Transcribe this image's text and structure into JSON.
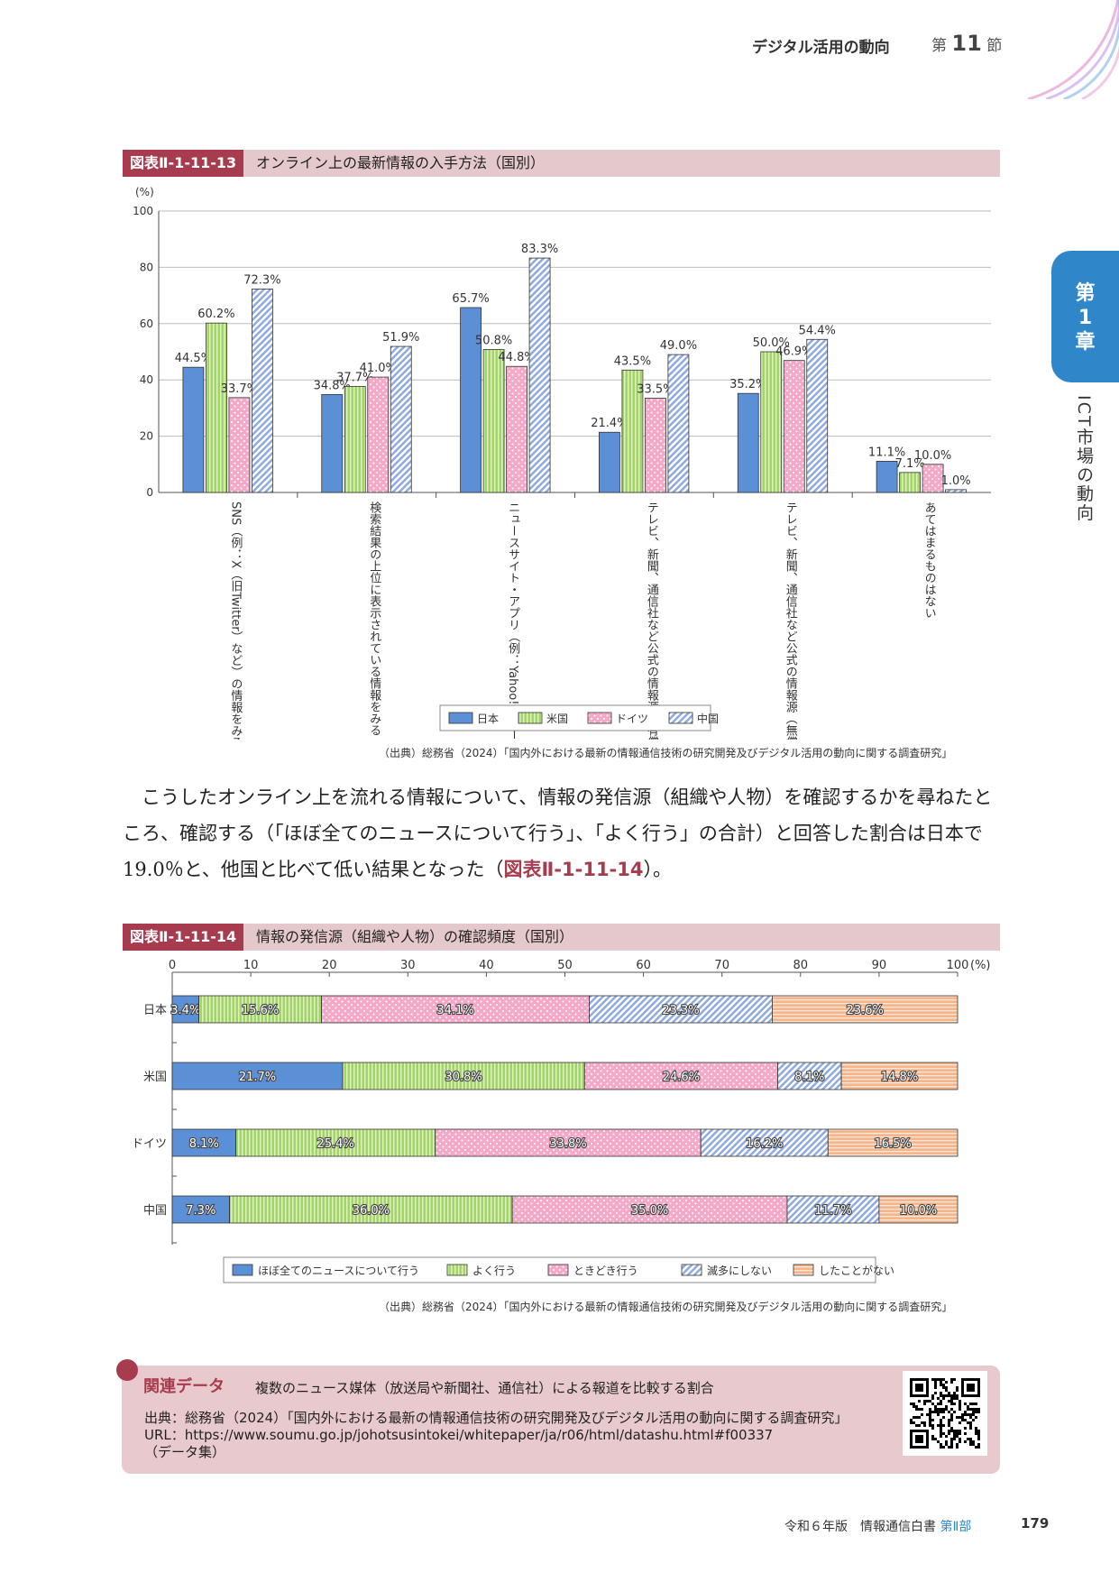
{
  "header": {
    "title": "デジタル活用の動向",
    "section_prefix": "第",
    "section_number": "11",
    "section_suffix": "節"
  },
  "side_tab": {
    "line1": "第",
    "line2": "1",
    "line3": "章",
    "vertical": "ICT市場の動向"
  },
  "figure13": {
    "label": "図表Ⅱ-1-11-13",
    "title": "オンライン上の最新情報の入手方法（国別）",
    "source": "（出典）総務省（2024）「国内外における最新の情報通信技術の研究開発及びデジタル活用の動向に関する調査研究」"
  },
  "figure14": {
    "label": "図表Ⅱ-1-11-14",
    "title": "情報の発信源（組織や人物）の確認頻度（国別）",
    "source": "（出典）総務省（2024）「国内外における最新の情報通信技術の研究開発及びデジタル活用の動向に関する調査研究」"
  },
  "paragraph": {
    "text": "こうしたオンライン上を流れる情報について、情報の発信源（組織や人物）を確認するかを尋ねたところ、確認する（「ほぼ全てのニュースについて行う」、「よく行う」の合計）と回答した割合は日本で19.0％と、他国と比べて低い結果となった（",
    "ref": "図表Ⅱ-1-11-14",
    "end": "）。"
  },
  "related": {
    "label": "関連データ",
    "title": "複数のニュース媒体（放送局や新聞社、通信社）による報道を比較する割合",
    "source_line": "出典：総務省（2024）「国内外における最新の情報通信技術の研究開発及びデジタル活用の動向に関する調査研究」",
    "url_line": "URL：https://www.soumu.go.jp/johotsusintokei/whitepaper/ja/r06/html/datashu.html#f00337",
    "note_line": "（データ集）"
  },
  "footer": {
    "edition": "令和６年版　情報通信白書",
    "part": "第Ⅱ部",
    "page": "179"
  },
  "chart_data": [
    {
      "type": "bar",
      "title": "オンライン上の最新情報の入手方法（国別）",
      "ylabel": "(%)",
      "ylim": [
        0,
        100
      ],
      "yticks": [
        0,
        20,
        40,
        60,
        80,
        100
      ],
      "categories": [
        "SNS（例：X（旧Twitter）など）の情報をみる",
        "検索結果の上位に表示されている情報をみる",
        "ニュースサイト・アプリ（例：Yahoo!ニュースなど）から自分へおすすめされる情報をみる",
        "テレビ、新聞、通信社など公式の情報源（有償サービス）から情報収集をおこなっている（知らないサイトは使わない）",
        "テレビ、新聞、通信社など公式の情報源（無償サービス）から情報収集をおこなっている（知らないサイトは使わない）",
        "あてはまるものはない"
      ],
      "series": [
        {
          "name": "日本",
          "color": "#5b8fd6",
          "values": [
            44.5,
            34.8,
            65.7,
            21.4,
            35.2,
            11.1
          ],
          "labels": [
            "44.5%",
            "34.8%",
            "65.7%",
            "21.4%",
            "35.2%",
            "11.1%"
          ]
        },
        {
          "name": "米国",
          "color": "#9fd85a",
          "values": [
            60.2,
            37.7,
            50.8,
            43.5,
            50.0,
            7.1
          ],
          "labels": [
            "60.2%",
            "37.7%",
            "50.8%",
            "43.5%",
            "50.0%",
            "7.1%"
          ]
        },
        {
          "name": "ドイツ",
          "color": "#f3a9c7",
          "values": [
            33.7,
            41.0,
            44.8,
            33.5,
            46.9,
            10.0
          ],
          "labels": [
            "33.7%",
            "41.0%",
            "44.8%",
            "33.5%",
            "46.9%",
            "10.0%"
          ]
        },
        {
          "name": "中国",
          "color": "#a8bde6",
          "values": [
            72.3,
            51.9,
            83.3,
            49.0,
            54.4,
            1.0
          ],
          "labels": [
            "72.3%",
            "51.9%",
            "83.3%",
            "49.0%",
            "54.4%",
            "1.0%"
          ]
        }
      ],
      "legend": [
        "日本",
        "米国",
        "ドイツ",
        "中国"
      ]
    },
    {
      "type": "bar",
      "orientation": "horizontal-stacked",
      "title": "情報の発信源（組織や人物）の確認頻度（国別）",
      "xlabel": "(%)",
      "xlim": [
        0,
        100
      ],
      "xticks": [
        0,
        10,
        20,
        30,
        40,
        50,
        60,
        70,
        80,
        90,
        100
      ],
      "categories": [
        "日本",
        "米国",
        "ドイツ",
        "中国"
      ],
      "series": [
        {
          "name": "ほぼ全てのニュースについて行う",
          "color": "#5b8fd6",
          "values": [
            3.4,
            21.7,
            8.1,
            7.3
          ],
          "labels": [
            "3.4%",
            "21.7%",
            "8.1%",
            "7.3%"
          ]
        },
        {
          "name": "よく行う",
          "color": "#9fd85a",
          "values": [
            15.6,
            30.8,
            25.4,
            36.0
          ],
          "labels": [
            "15.6%",
            "30.8%",
            "25.4%",
            "36.0%"
          ]
        },
        {
          "name": "ときどき行う",
          "color": "#f3a9c7",
          "values": [
            34.1,
            24.6,
            33.8,
            35.0
          ],
          "labels": [
            "34.1%",
            "24.6%",
            "33.8%",
            "35.0%"
          ]
        },
        {
          "name": "滅多にしない",
          "color": "#a8bde6",
          "values": [
            23.3,
            8.1,
            16.2,
            11.7
          ],
          "labels": [
            "23.3%",
            "8.1%",
            "16.2%",
            "11.7%"
          ]
        },
        {
          "name": "したことがない",
          "color": "#f7b58a",
          "values": [
            23.6,
            14.8,
            16.5,
            10.0
          ],
          "labels": [
            "23.6%",
            "14.8%",
            "16.5%",
            "10.0%"
          ]
        }
      ],
      "legend": [
        "ほぼ全てのニュースについて行う",
        "よく行う",
        "ときどき行う",
        "滅多にしない",
        "したことがない"
      ]
    }
  ]
}
